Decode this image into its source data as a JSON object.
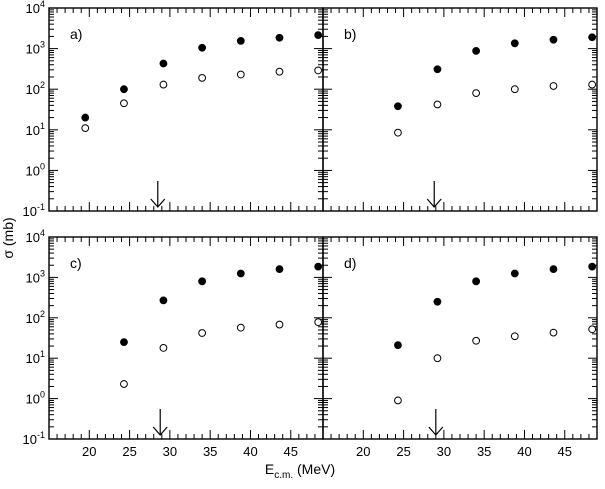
{
  "chart_data": [
    {
      "type": "scatter",
      "panel_label": "a)",
      "xlim": [
        15,
        49
      ],
      "ylim_log10": [
        -1,
        4
      ],
      "yscale": "log",
      "arrow_x": 28.5,
      "series": [
        {
          "marker": "filled",
          "points": [
            [
              19.5,
              20
            ],
            [
              24.3,
              100
            ],
            [
              29.2,
              430
            ],
            [
              34.0,
              1050
            ],
            [
              38.8,
              1550
            ],
            [
              43.6,
              1850
            ],
            [
              48.4,
              2150
            ]
          ]
        },
        {
          "marker": "open",
          "points": [
            [
              19.5,
              11
            ],
            [
              24.3,
              45
            ],
            [
              29.2,
              130
            ],
            [
              34.0,
              190
            ],
            [
              38.8,
              230
            ],
            [
              43.6,
              270
            ],
            [
              48.4,
              290
            ]
          ]
        }
      ]
    },
    {
      "type": "scatter",
      "panel_label": "b)",
      "xlim": [
        15,
        49
      ],
      "ylim_log10": [
        -1,
        4
      ],
      "yscale": "log",
      "arrow_x": 28.8,
      "series": [
        {
          "marker": "filled",
          "points": [
            [
              24.3,
              38
            ],
            [
              29.2,
              310
            ],
            [
              34.0,
              880
            ],
            [
              38.8,
              1350
            ],
            [
              43.6,
              1650
            ],
            [
              48.4,
              1900
            ]
          ]
        },
        {
          "marker": "open",
          "points": [
            [
              24.3,
              8.5
            ],
            [
              29.2,
              42
            ],
            [
              34.0,
              80
            ],
            [
              38.8,
              100
            ],
            [
              43.6,
              120
            ],
            [
              48.4,
              130
            ]
          ]
        }
      ]
    },
    {
      "type": "scatter",
      "panel_label": "c)",
      "xlim": [
        15,
        49
      ],
      "ylim_log10": [
        -1,
        4
      ],
      "yscale": "log",
      "arrow_x": 28.8,
      "series": [
        {
          "marker": "filled",
          "points": [
            [
              24.3,
              25
            ],
            [
              29.2,
              270
            ],
            [
              34.0,
              800
            ],
            [
              38.8,
              1250
            ],
            [
              43.6,
              1600
            ],
            [
              48.4,
              1850
            ]
          ]
        },
        {
          "marker": "open",
          "points": [
            [
              24.3,
              2.3
            ],
            [
              29.2,
              18
            ],
            [
              34.0,
              42
            ],
            [
              38.8,
              57
            ],
            [
              43.6,
              68
            ],
            [
              48.4,
              78
            ]
          ]
        }
      ]
    },
    {
      "type": "scatter",
      "panel_label": "d)",
      "xlim": [
        15,
        49
      ],
      "ylim_log10": [
        -1,
        4
      ],
      "yscale": "log",
      "arrow_x": 29.0,
      "series": [
        {
          "marker": "filled",
          "points": [
            [
              24.3,
              21
            ],
            [
              29.2,
              250
            ],
            [
              34.0,
              800
            ],
            [
              38.8,
              1250
            ],
            [
              43.6,
              1600
            ],
            [
              48.4,
              1850
            ]
          ]
        },
        {
          "marker": "open",
          "points": [
            [
              24.3,
              0.9
            ],
            [
              29.2,
              10
            ],
            [
              34.0,
              27
            ],
            [
              38.8,
              35
            ],
            [
              43.6,
              43
            ],
            [
              48.4,
              52
            ]
          ]
        }
      ]
    }
  ],
  "axes": {
    "ylabel": "σ (mb)",
    "xlabel_main": "E",
    "xlabel_sub": "c.m.",
    "xlabel_unit": " (MeV)",
    "x_tick_labels": [
      "20",
      "25",
      "30",
      "35",
      "40",
      "45"
    ],
    "x_tick_values": [
      20,
      25,
      30,
      35,
      40,
      45
    ],
    "y_tick_exponents": [
      "-1",
      "0",
      "1",
      "2",
      "3",
      "4"
    ],
    "y_tick_base": "10"
  }
}
